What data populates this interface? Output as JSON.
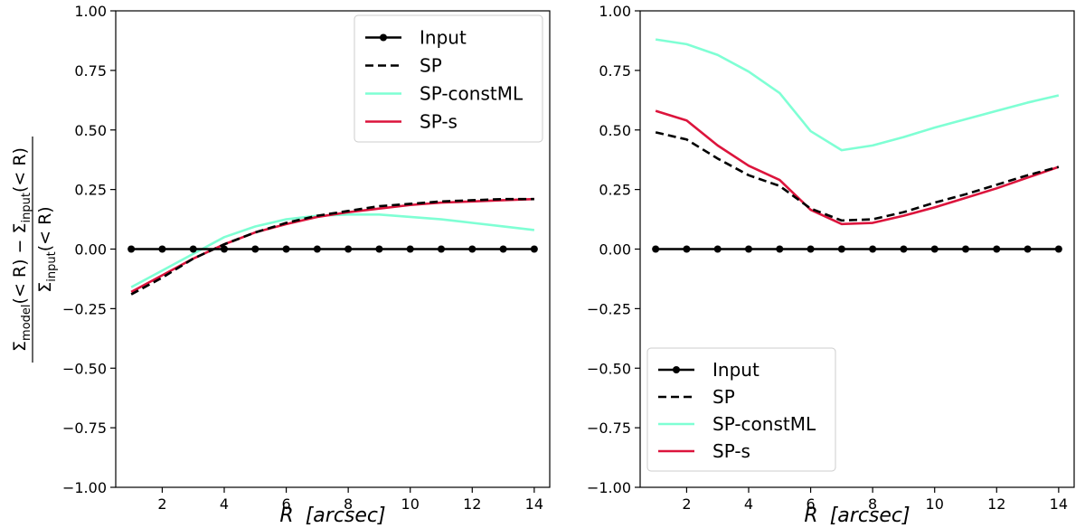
{
  "chart_data": [
    {
      "type": "line",
      "panel": "left",
      "title": "",
      "xlabel_var": "R",
      "xlabel_unit": "[arcsec]",
      "ylabel_parts": {
        "num_left": "Σ",
        "num_left_sub": "model",
        "num_mid": "(< R) − Σ",
        "num_mid_sub": "input",
        "num_right": "(< R)",
        "den_left": "Σ",
        "den_sub": "input",
        "den_right": "(< R)"
      },
      "xlim": [
        0.5,
        14.5
      ],
      "ylim": [
        -1.0,
        1.0
      ],
      "xticks": [
        2,
        4,
        6,
        8,
        10,
        12,
        14
      ],
      "yticks": [
        -1.0,
        -0.75,
        -0.5,
        -0.25,
        0.0,
        0.25,
        0.5,
        0.75,
        1.0
      ],
      "ytick_labels": [
        "−1.00",
        "−0.75",
        "−0.50",
        "−0.25",
        "0.00",
        "0.25",
        "0.50",
        "0.75",
        "1.00"
      ],
      "legend_position": "top-right",
      "series": [
        {
          "name": "Input",
          "style": "solid-marker",
          "color": "#000000",
          "x": [
            1,
            2,
            3,
            4,
            5,
            6,
            7,
            8,
            9,
            10,
            11,
            12,
            13,
            14
          ],
          "y": [
            0,
            0,
            0,
            0,
            0,
            0,
            0,
            0,
            0,
            0,
            0,
            0,
            0,
            0
          ]
        },
        {
          "name": "SP",
          "style": "dashed",
          "color": "#000000",
          "x": [
            1,
            2,
            3,
            4,
            5,
            6,
            7,
            8,
            9,
            10,
            11,
            12,
            13,
            14
          ],
          "y": [
            -0.19,
            -0.12,
            -0.04,
            0.02,
            0.07,
            0.11,
            0.14,
            0.16,
            0.18,
            0.19,
            0.2,
            0.205,
            0.21,
            0.21
          ]
        },
        {
          "name": "SP-constML",
          "style": "solid",
          "color": "#7fffd4",
          "x": [
            1,
            2,
            3,
            4,
            5,
            6,
            7,
            8,
            9,
            10,
            11,
            12,
            13,
            14
          ],
          "y": [
            -0.16,
            -0.09,
            -0.02,
            0.05,
            0.095,
            0.125,
            0.14,
            0.145,
            0.145,
            0.135,
            0.125,
            0.11,
            0.095,
            0.08
          ]
        },
        {
          "name": "SP-s",
          "style": "solid",
          "color": "#dc143c",
          "x": [
            1,
            2,
            3,
            4,
            5,
            6,
            7,
            8,
            9,
            10,
            11,
            12,
            13,
            14
          ],
          "y": [
            -0.18,
            -0.11,
            -0.04,
            0.02,
            0.07,
            0.105,
            0.135,
            0.155,
            0.17,
            0.185,
            0.195,
            0.2,
            0.205,
            0.21
          ]
        }
      ]
    },
    {
      "type": "line",
      "panel": "right",
      "title": "",
      "xlabel_var": "R",
      "xlabel_unit": "[arcsec]",
      "xlim": [
        0.5,
        14.5
      ],
      "ylim": [
        -1.0,
        1.0
      ],
      "xticks": [
        2,
        4,
        6,
        8,
        10,
        12,
        14
      ],
      "yticks": [
        -1.0,
        -0.75,
        -0.5,
        -0.25,
        0.0,
        0.25,
        0.5,
        0.75,
        1.0
      ],
      "ytick_labels": [
        "−1.00",
        "−0.75",
        "−0.50",
        "−0.25",
        "0.00",
        "0.25",
        "0.50",
        "0.75",
        "1.00"
      ],
      "legend_position": "bottom-left",
      "series": [
        {
          "name": "Input",
          "style": "solid-marker",
          "color": "#000000",
          "x": [
            1,
            2,
            3,
            4,
            5,
            6,
            7,
            8,
            9,
            10,
            11,
            12,
            13,
            14
          ],
          "y": [
            0,
            0,
            0,
            0,
            0,
            0,
            0,
            0,
            0,
            0,
            0,
            0,
            0,
            0
          ]
        },
        {
          "name": "SP",
          "style": "dashed",
          "color": "#000000",
          "x": [
            1,
            2,
            3,
            4,
            5,
            6,
            7,
            8,
            9,
            10,
            11,
            12,
            13,
            14
          ],
          "y": [
            0.49,
            0.46,
            0.38,
            0.31,
            0.265,
            0.17,
            0.12,
            0.125,
            0.155,
            0.195,
            0.23,
            0.27,
            0.31,
            0.345
          ]
        },
        {
          "name": "SP-constML",
          "style": "solid",
          "color": "#7fffd4",
          "x": [
            1,
            2,
            3,
            4,
            5,
            6,
            7,
            8,
            9,
            10,
            11,
            12,
            13,
            14
          ],
          "y": [
            0.88,
            0.86,
            0.815,
            0.745,
            0.655,
            0.495,
            0.415,
            0.435,
            0.47,
            0.51,
            0.545,
            0.58,
            0.615,
            0.645
          ]
        },
        {
          "name": "SP-s",
          "style": "solid",
          "color": "#dc143c",
          "x": [
            1,
            2,
            3,
            4,
            5,
            6,
            7,
            8,
            9,
            10,
            11,
            12,
            13,
            14
          ],
          "y": [
            0.58,
            0.54,
            0.435,
            0.35,
            0.29,
            0.165,
            0.105,
            0.11,
            0.14,
            0.175,
            0.215,
            0.255,
            0.3,
            0.345
          ]
        }
      ]
    }
  ]
}
